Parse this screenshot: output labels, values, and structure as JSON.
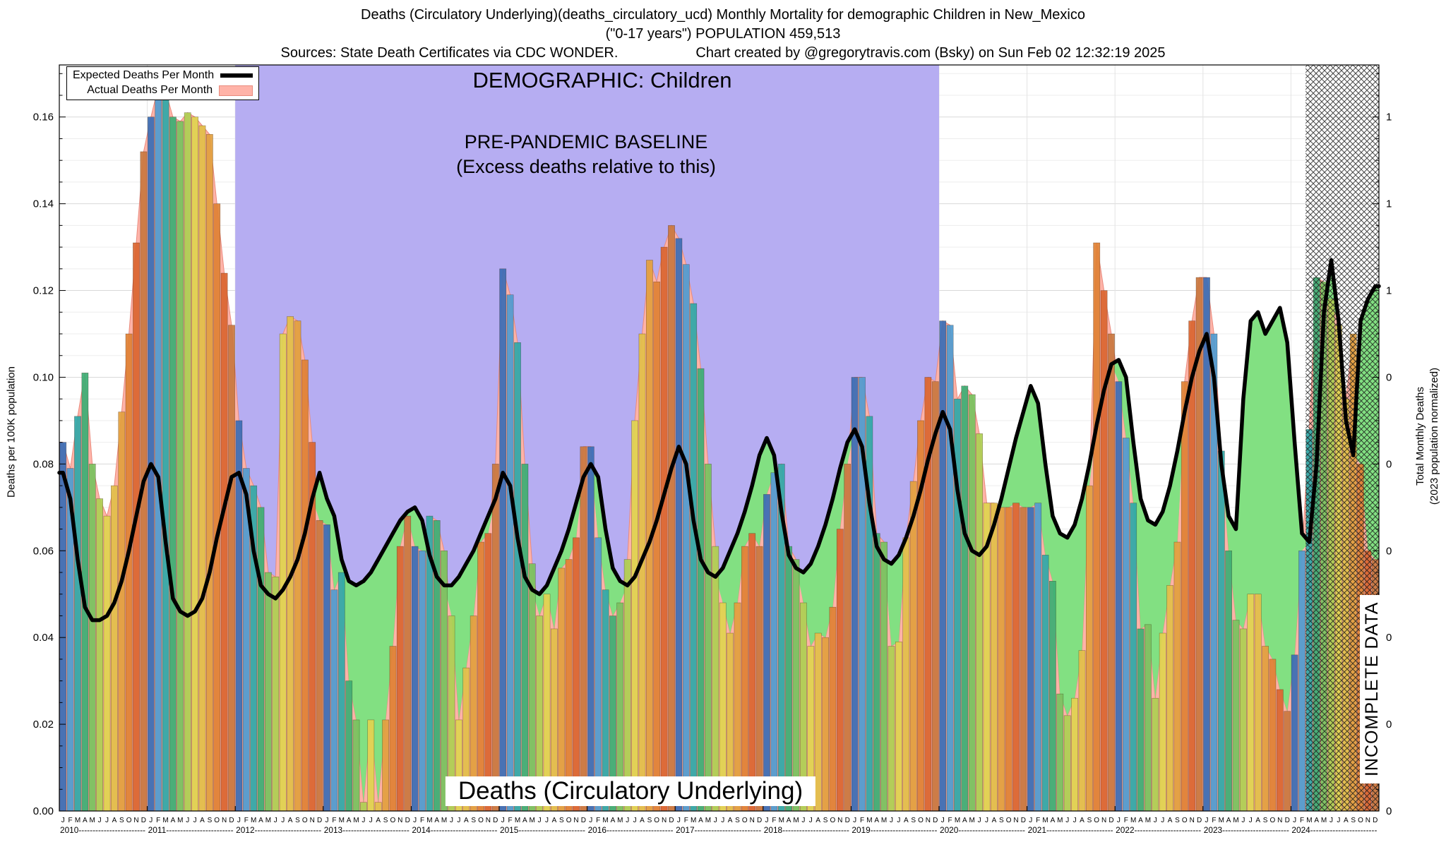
{
  "header": {
    "title_line1": "Deaths (Circulatory Underlying)(deaths_circulatory_ucd) Monthly Mortality for demographic Children in New_Mexico",
    "title_line2": "(\"0-17 years\") POPULATION 459,513",
    "sources": "Sources: State Death Certificates via CDC WONDER.",
    "credit": "Chart created by @gregorytravis.com (Bsky) on Sun Feb 02 12:32:19 2025"
  },
  "legend": {
    "expected_label": "Expected Deaths Per Month",
    "actual_label": "Actual Deaths Per Month"
  },
  "annotations": {
    "demographic": "DEMOGRAPHIC: Children",
    "baseline_line1": "PRE-PANDEMIC BASELINE",
    "baseline_line2": "(Excess deaths relative to this)",
    "bottom_label": "Deaths (Circulatory Underlying)",
    "incomplete": "INCOMPLETE DATA"
  },
  "axes": {
    "left_label": "Deaths per 100K population",
    "right_label_line1": "Total Monthly Deaths",
    "right_label_line2": "(2023 population normalized)",
    "left_tick_values": [
      0,
      0.02,
      0.04,
      0.06,
      0.08,
      0.1,
      0.12,
      0.14,
      0.16
    ],
    "left_tick_labels": [
      "0.00",
      "0.02",
      "0.04",
      "0.06",
      "0.08",
      "0.10",
      "0.12",
      "0.14",
      "0.16"
    ],
    "right_tick_labels": [
      "0",
      "0",
      "0",
      "0",
      "0",
      "0",
      "1",
      "1",
      "1"
    ]
  },
  "chart_data": {
    "type": "bar",
    "title": "Deaths (Circulatory Underlying)(deaths_circulatory_ucd) Monthly Mortality for demographic Children in New_Mexico",
    "subtitle": "(\"0-17 years\") POPULATION 459,513",
    "xlabel": "",
    "ylabel": "Deaths per 100K population",
    "y2label": "Total Monthly Deaths (2023 population normalized)",
    "ylim": [
      0,
      0.172
    ],
    "x_start": "2010-01",
    "x_end": "2024-12",
    "years": [
      "2010",
      "2011",
      "2012",
      "2013",
      "2014",
      "2015",
      "2016",
      "2017",
      "2018",
      "2019",
      "2020",
      "2021",
      "2022",
      "2023",
      "2024"
    ],
    "month_letters": [
      "J",
      "F",
      "M",
      "A",
      "M",
      "J",
      "J",
      "A",
      "S",
      "O",
      "N",
      "D"
    ],
    "month_colors": [
      "#3a6db5",
      "#4f9bd0",
      "#2fa8a8",
      "#3cae74",
      "#77c25e",
      "#aecf52",
      "#e0d44f",
      "#e2bf49",
      "#e2a03e",
      "#e08134",
      "#da6530",
      "#c9773f"
    ],
    "series": [
      {
        "name": "Actual Deaths Per Month"
      },
      {
        "name": "Expected Deaths Per Month"
      }
    ],
    "actual_by_year": [
      [
        0.085,
        0.079,
        0.091,
        0.101,
        0.08,
        0.072,
        0.068,
        0.075,
        0.092,
        0.11,
        0.131,
        0.152
      ],
      [
        0.16,
        0.167,
        0.166,
        0.16,
        0.159,
        0.161,
        0.16,
        0.158,
        0.156,
        0.14,
        0.124,
        0.112
      ],
      [
        0.09,
        0.079,
        0.075,
        0.07,
        0.055,
        0.054,
        0.11,
        0.114,
        0.113,
        0.104,
        0.085,
        0.067
      ],
      [
        0.066,
        0.051,
        0.055,
        0.03,
        0.021,
        0.002,
        0.021,
        0.002,
        0.021,
        0.038,
        0.061,
        0.068
      ],
      [
        0.061,
        0.06,
        0.068,
        0.067,
        0.06,
        0.045,
        0.021,
        0.033,
        0.045,
        0.062,
        0.064,
        0.08
      ],
      [
        0.125,
        0.119,
        0.108,
        0.08,
        0.057,
        0.045,
        0.05,
        0.042,
        0.056,
        0.058,
        0.063,
        0.084
      ],
      [
        0.084,
        0.063,
        0.051,
        0.045,
        0.048,
        0.058,
        0.09,
        0.11,
        0.127,
        0.122,
        0.13,
        0.135
      ],
      [
        0.132,
        0.126,
        0.117,
        0.102,
        0.08,
        0.061,
        0.048,
        0.041,
        0.048,
        0.061,
        0.064,
        0.061
      ],
      [
        0.073,
        0.078,
        0.08,
        0.061,
        0.058,
        0.048,
        0.038,
        0.041,
        0.04,
        0.047,
        0.065,
        0.08
      ],
      [
        0.1,
        0.1,
        0.091,
        0.064,
        0.062,
        0.038,
        0.039,
        0.063,
        0.076,
        0.09,
        0.1,
        0.099
      ],
      [
        0.113,
        0.112,
        0.095,
        0.098,
        0.096,
        0.087,
        0.071,
        0.071,
        0.07,
        0.07,
        0.071,
        0.07
      ],
      [
        0.07,
        0.071,
        0.059,
        0.053,
        0.027,
        0.022,
        0.026,
        0.037,
        0.075,
        0.131,
        0.12,
        0.11
      ],
      [
        0.099,
        0.086,
        0.071,
        0.042,
        0.043,
        0.026,
        0.041,
        0.052,
        0.062,
        0.099,
        0.113,
        0.123
      ],
      [
        0.123,
        0.11,
        0.083,
        0.06,
        0.044,
        0.042,
        0.05,
        0.05,
        0.038,
        0.035,
        0.028,
        0.023
      ],
      [
        0.036,
        0.06,
        0.088,
        0.123,
        0.122,
        0.118,
        0.112,
        0.095,
        0.11,
        0.08,
        0.06,
        0.058
      ]
    ],
    "expected_by_year": [
      [
        0.078,
        0.072,
        0.058,
        0.047,
        0.044,
        0.044,
        0.045,
        0.048,
        0.053,
        0.06,
        0.068,
        0.076
      ],
      [
        0.08,
        0.077,
        0.062,
        0.049,
        0.046,
        0.045,
        0.046,
        0.049,
        0.055,
        0.063,
        0.07,
        0.077
      ],
      [
        0.078,
        0.073,
        0.06,
        0.052,
        0.05,
        0.049,
        0.051,
        0.054,
        0.058,
        0.064,
        0.072,
        0.078
      ],
      [
        0.072,
        0.068,
        0.058,
        0.053,
        0.052,
        0.053,
        0.055,
        0.058,
        0.061,
        0.064,
        0.067,
        0.069
      ],
      [
        0.07,
        0.067,
        0.059,
        0.054,
        0.052,
        0.052,
        0.054,
        0.057,
        0.06,
        0.064,
        0.068,
        0.072
      ],
      [
        0.078,
        0.075,
        0.063,
        0.054,
        0.051,
        0.05,
        0.052,
        0.056,
        0.06,
        0.065,
        0.071,
        0.077
      ],
      [
        0.08,
        0.077,
        0.065,
        0.056,
        0.053,
        0.052,
        0.054,
        0.058,
        0.062,
        0.067,
        0.073,
        0.079
      ],
      [
        0.084,
        0.08,
        0.067,
        0.058,
        0.055,
        0.054,
        0.056,
        0.06,
        0.064,
        0.069,
        0.075,
        0.082
      ],
      [
        0.086,
        0.082,
        0.069,
        0.059,
        0.056,
        0.055,
        0.057,
        0.061,
        0.066,
        0.072,
        0.079,
        0.085
      ],
      [
        0.088,
        0.084,
        0.071,
        0.061,
        0.058,
        0.057,
        0.059,
        0.063,
        0.068,
        0.074,
        0.081,
        0.087
      ],
      [
        0.092,
        0.088,
        0.074,
        0.064,
        0.06,
        0.059,
        0.061,
        0.066,
        0.072,
        0.079,
        0.086,
        0.092
      ],
      [
        0.098,
        0.094,
        0.08,
        0.068,
        0.064,
        0.063,
        0.066,
        0.072,
        0.08,
        0.089,
        0.097,
        0.103
      ],
      [
        0.104,
        0.1,
        0.085,
        0.072,
        0.067,
        0.066,
        0.069,
        0.075,
        0.083,
        0.092,
        0.1,
        0.106
      ],
      [
        0.11,
        0.1,
        0.08,
        0.068,
        0.065,
        0.095,
        0.113,
        0.115,
        0.11,
        0.113,
        0.116,
        0.108
      ],
      [
        0.085,
        0.064,
        0.062,
        0.08,
        0.115,
        0.127,
        0.113,
        0.09,
        0.082,
        0.113,
        0.118,
        0.121
      ]
    ],
    "baseline_region": {
      "start_month_index": 24,
      "end_month_index": 120
    },
    "incomplete_region": {
      "start_month_index": 170,
      "end_month_index": 180
    },
    "colors": {
      "baseline_fill": "#b6adf2",
      "actual_fill": "#ffb3a8",
      "actual_stroke": "#e98b7d",
      "deficit_fill": "#82e082",
      "expected_line": "#000000",
      "hatch": "#1a1a1a"
    },
    "legend_position": "top-left",
    "grid": true
  }
}
